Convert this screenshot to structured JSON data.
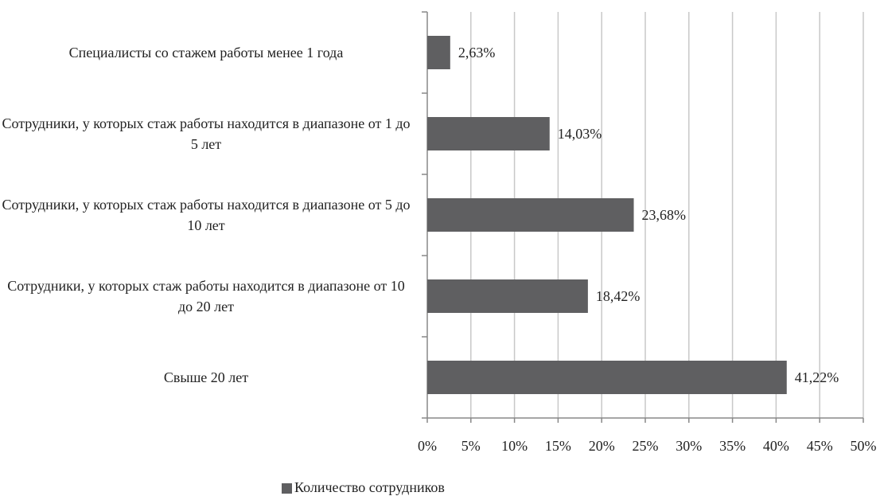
{
  "chart_data": {
    "type": "hbar",
    "categories": [
      "Специалисты со стажем работы менее 1 года",
      "Сотрудники, у которых стаж работы находится в диапазоне от 1 до 5 лет",
      "Сотрудники, у которых стаж работы находится в диапазоне от 5 до 10 лет",
      "Сотрудники, у которых стаж работы находится в диапазоне от 10 до 20 лет",
      "Свыше 20 лет"
    ],
    "series": [
      {
        "name": "Количество сотрудников",
        "color": "#5f5f61",
        "values": [
          2.63,
          14.03,
          23.68,
          18.42,
          41.22
        ],
        "value_labels": [
          "2,63%",
          "14,03%",
          "23,68%",
          "18,42%",
          "41,22%"
        ]
      }
    ],
    "xlim": [
      0,
      50
    ],
    "xticks": [
      {
        "value": 0,
        "label": "0%"
      },
      {
        "value": 5,
        "label": "5%"
      },
      {
        "value": 10,
        "label": "10%"
      },
      {
        "value": 15,
        "label": "15%"
      },
      {
        "value": 20,
        "label": "20%"
      },
      {
        "value": 25,
        "label": "25%"
      },
      {
        "value": 30,
        "label": "30%"
      },
      {
        "value": 35,
        "label": "35%"
      },
      {
        "value": 40,
        "label": "40%"
      },
      {
        "value": 45,
        "label": "45%"
      },
      {
        "value": 50,
        "label": "50%"
      }
    ],
    "grid": true,
    "legend": "bottom"
  }
}
